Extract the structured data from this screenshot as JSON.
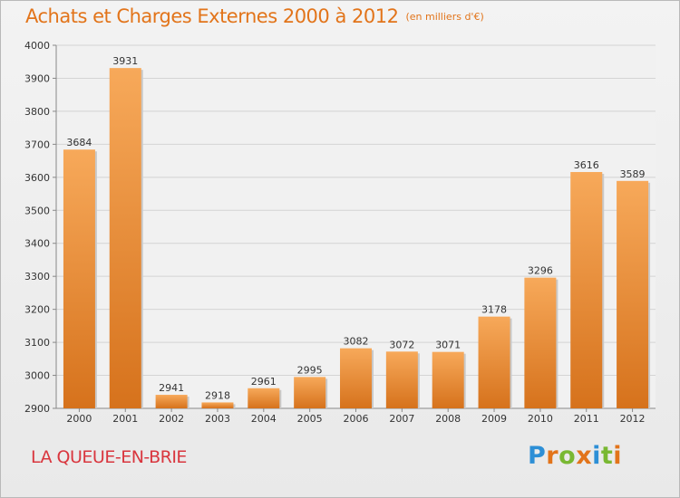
{
  "header": {
    "title": "Achats et Charges Externes 2000 à 2012",
    "unit": "(en milliers d'€)"
  },
  "footer": {
    "place": "LA QUEUE-EN-BRIE",
    "brand": {
      "letters": [
        "P",
        "r",
        "o",
        "x",
        "i",
        "t",
        "i"
      ],
      "colors": [
        "#2d8fd6",
        "#e2741a",
        "#79b832",
        "#e2741a",
        "#2d8fd6",
        "#79b832",
        "#e2741a"
      ]
    }
  },
  "colors": {
    "bar_light": "#f7a95a",
    "bar_dark": "#d6721c",
    "title": "#e2741a",
    "place": "#d9363e",
    "grid": "#d4d4d4"
  },
  "chart_data": {
    "type": "bar",
    "title": "Achats et Charges Externes 2000 à 2012",
    "categories": [
      "2000",
      "2001",
      "2002",
      "2003",
      "2004",
      "2005",
      "2006",
      "2007",
      "2008",
      "2009",
      "2010",
      "2011",
      "2012"
    ],
    "values": [
      3684,
      3931,
      2941,
      2918,
      2961,
      2995,
      3082,
      3072,
      3071,
      3178,
      3296,
      3616,
      3589
    ],
    "yticks": [
      2900,
      3000,
      3100,
      3200,
      3300,
      3400,
      3500,
      3600,
      3700,
      3800,
      3900,
      4000
    ],
    "ylim": [
      2900,
      4000
    ],
    "grid": true,
    "legend": "none"
  }
}
